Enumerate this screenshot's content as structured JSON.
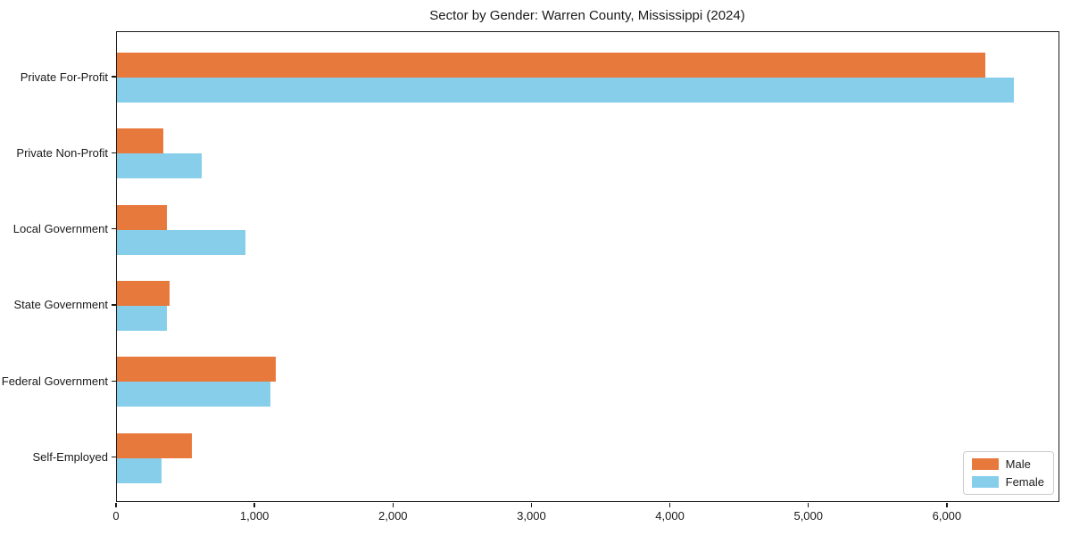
{
  "chart_data": {
    "type": "bar",
    "orientation": "horizontal",
    "title": "Sector by Gender: Warren County, Mississippi (2024)",
    "categories": [
      "Private For-Profit",
      "Private Non-Profit",
      "Local Government",
      "State Government",
      "Federal Government",
      "Self-Employed"
    ],
    "series": [
      {
        "name": "Male",
        "color": "#e8793d",
        "values": [
          6270,
          335,
          360,
          380,
          1150,
          540
        ]
      },
      {
        "name": "Female",
        "color": "#87ceeb",
        "values": [
          6480,
          615,
          930,
          360,
          1110,
          320
        ]
      }
    ],
    "xlabel": "",
    "ylabel": "",
    "xlim": [
      0,
      6800
    ],
    "x_ticks": [
      0,
      1000,
      2000,
      3000,
      4000,
      5000,
      6000
    ],
    "x_tick_labels": [
      "0",
      "1,000",
      "2,000",
      "3,000",
      "4,000",
      "5,000",
      "6,000"
    ],
    "grid": false,
    "legend": {
      "position": "lower right",
      "entries": [
        "Male",
        "Female"
      ]
    }
  },
  "colors": {
    "male": "#e8793d",
    "female": "#87ceeb",
    "spine": "#1a1a1a",
    "text": "#1a1a1a",
    "legend_border": "#cccccc",
    "background": "#ffffff"
  }
}
